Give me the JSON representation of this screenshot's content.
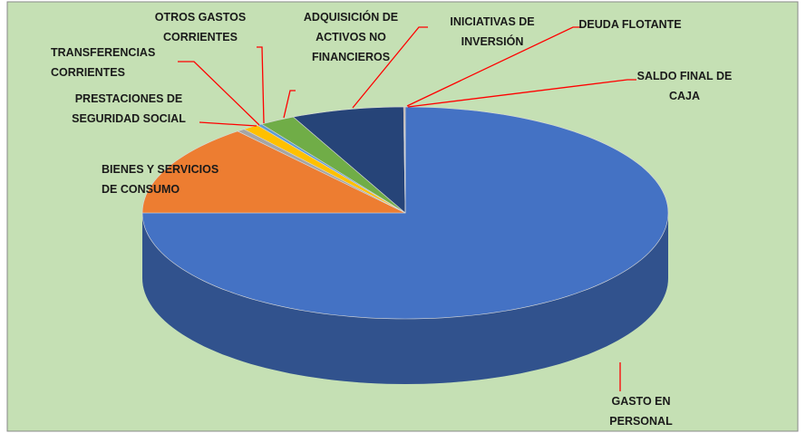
{
  "chart_data": {
    "type": "pie3d",
    "categories": [
      "GASTO EN PERSONAL",
      "BIENES Y SERVICIOS DE CONSUMO",
      "PRESTACIONES DE SEGURIDAD SOCIAL",
      "TRANSFERENCIAS CORRIENTES",
      "OTROS GASTOS CORRIENTES",
      "ADQUISICIÓN DE ACTIVOS NO FINANCIEROS",
      "INICIATIVAS DE INVERSIÓN",
      "DEUDA FLOTANTE",
      "SALDO FINAL DE CAJA"
    ],
    "values": [
      75.0,
      14.0,
      0.5,
      1.0,
      0.3,
      2.2,
      6.9,
      0.05,
      0.05
    ],
    "colors": [
      "#4472c4",
      "#ed7d31",
      "#a5a5a5",
      "#ffc000",
      "#5b9bd5",
      "#70ad47",
      "#264478",
      "#9e480e",
      "#636363"
    ]
  }
}
